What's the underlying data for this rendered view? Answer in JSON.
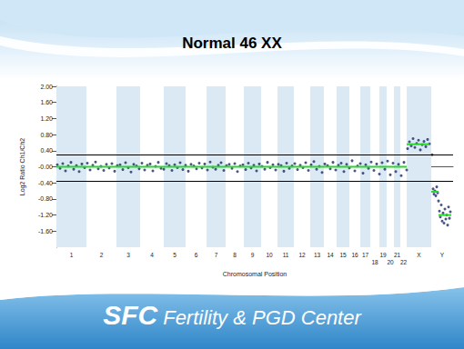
{
  "title": "Normal 46 XX",
  "footer": {
    "brand": "SFC",
    "text": "Fertility & PGD Center"
  },
  "chart_data": {
    "type": "scatter",
    "x_label": "Chromosomal Position",
    "y_label": "Log2 Ratio Ch1/Ch2",
    "xlim": [
      0,
      436
    ],
    "ylim": [
      -2,
      2
    ],
    "yticks": [
      {
        "value": 2,
        "label": "2.00"
      },
      {
        "value": 1.6,
        "label": "1.60"
      },
      {
        "value": 1.2,
        "label": "1.20"
      },
      {
        "value": 0.8,
        "label": "0.80"
      },
      {
        "value": 0.4,
        "label": "0.40"
      },
      {
        "value": 0,
        "label": "-0.00"
      },
      {
        "value": -0.4,
        "label": "-0.40"
      },
      {
        "value": -0.8,
        "label": "-0.80"
      },
      {
        "value": -1.2,
        "label": "-1.20"
      },
      {
        "value": -1.6,
        "label": "-1.60"
      }
    ],
    "grid": false,
    "color": "#1c2a66",
    "marker": "circle",
    "chromosomes": [
      {
        "name": "1",
        "start": 0,
        "end": 33
      },
      {
        "name": "2",
        "start": 33,
        "end": 66
      },
      {
        "name": "3",
        "start": 66,
        "end": 92
      },
      {
        "name": "4",
        "start": 92,
        "end": 118
      },
      {
        "name": "5",
        "start": 118,
        "end": 142
      },
      {
        "name": "6",
        "start": 142,
        "end": 165
      },
      {
        "name": "7",
        "start": 165,
        "end": 186
      },
      {
        "name": "8",
        "start": 186,
        "end": 206
      },
      {
        "name": "9",
        "start": 206,
        "end": 225
      },
      {
        "name": "10",
        "start": 225,
        "end": 243
      },
      {
        "name": "11",
        "start": 243,
        "end": 261
      },
      {
        "name": "12",
        "start": 261,
        "end": 279
      },
      {
        "name": "13",
        "start": 279,
        "end": 294
      },
      {
        "name": "14",
        "start": 294,
        "end": 308
      },
      {
        "name": "15",
        "start": 308,
        "end": 322
      },
      {
        "name": "16",
        "start": 322,
        "end": 334
      },
      {
        "name": "17",
        "start": 334,
        "end": 345
      },
      {
        "name": "18",
        "start": 345,
        "end": 355
      },
      {
        "name": "19",
        "start": 355,
        "end": 363
      },
      {
        "name": "20",
        "start": 363,
        "end": 371
      },
      {
        "name": "21",
        "start": 371,
        "end": 378
      },
      {
        "name": "22",
        "start": 378,
        "end": 385
      },
      {
        "name": "X",
        "start": 385,
        "end": 412
      },
      {
        "name": "Y",
        "start": 412,
        "end": 436
      }
    ],
    "thresholds": [
      0.3,
      -0.35
    ],
    "segments": {
      "color": "#2bd62b",
      "lines": [
        {
          "start": 0,
          "end": 385,
          "value": 0
        },
        {
          "start": 385,
          "end": 410,
          "value": 0.56
        },
        {
          "start": 412,
          "end": 420,
          "value": -0.62
        },
        {
          "start": 420,
          "end": 434,
          "value": -1.2
        }
      ]
    },
    "x": [
      1,
      4,
      7,
      10,
      13,
      16,
      19,
      22,
      25,
      28,
      31,
      34,
      37,
      40,
      43,
      46,
      49,
      52,
      55,
      58,
      61,
      64,
      67,
      70,
      73,
      76,
      79,
      82,
      85,
      88,
      91,
      94,
      97,
      100,
      103,
      106,
      109,
      112,
      115,
      118,
      121,
      124,
      127,
      130,
      133,
      136,
      139,
      142,
      145,
      148,
      151,
      154,
      157,
      160,
      163,
      166,
      169,
      172,
      175,
      178,
      181,
      184,
      187,
      190,
      193,
      196,
      199,
      202,
      205,
      208,
      211,
      214,
      217,
      220,
      223,
      226,
      229,
      232,
      235,
      238,
      241,
      244,
      247,
      250,
      253,
      256,
      259,
      262,
      265,
      268,
      271,
      274,
      277,
      280,
      283,
      286,
      289,
      292,
      295,
      298,
      301,
      304,
      307,
      310,
      313,
      316,
      319,
      322,
      325,
      328,
      331,
      334,
      337,
      340,
      343,
      346,
      349,
      352,
      355,
      358,
      361,
      364,
      367,
      370,
      373,
      376,
      379,
      382,
      385,
      386,
      388,
      390,
      392,
      394,
      396,
      398,
      400,
      402,
      404,
      406,
      408,
      410,
      413,
      414,
      415,
      416,
      417,
      418,
      419,
      420,
      421,
      422,
      423,
      424,
      425,
      426,
      427,
      428,
      429,
      430,
      431,
      432,
      433
    ],
    "values": [
      0.05,
      -0.04,
      0.08,
      -0.1,
      0.02,
      0.11,
      -0.06,
      0.03,
      -0.12,
      0.07,
      -0.02,
      0.09,
      -0.08,
      0.04,
      0.12,
      -0.05,
      0.01,
      -0.09,
      0.06,
      -0.03,
      0.08,
      -0.11,
      0.03,
      0.05,
      -0.07,
      0.1,
      -0.02,
      -0.13,
      0.06,
      0.02,
      -0.05,
      0.09,
      -0.08,
      0.04,
      0.07,
      -0.1,
      0.01,
      0.11,
      -0.04,
      -0.06,
      0.08,
      0.03,
      -0.09,
      0.05,
      -0.02,
      0.1,
      -0.07,
      0.04,
      -0.11,
      0.06,
      0.02,
      -0.05,
      0.09,
      -0.03,
      0.07,
      -0.08,
      0.12,
      -0.01,
      -0.06,
      0.04,
      0.1,
      -0.09,
      0.03,
      0.06,
      -0.04,
      0.08,
      -0.12,
      0.02,
      0.05,
      -0.07,
      0.09,
      -0.03,
      0.04,
      -0.1,
      0.07,
      0.01,
      -0.06,
      0.11,
      -0.02,
      0.05,
      -0.08,
      0.06,
      0.03,
      -0.11,
      0.09,
      -0.04,
      0.02,
      0.08,
      -0.07,
      0.04,
      -0.02,
      0.1,
      -0.09,
      0.05,
      0.13,
      -0.06,
      0.01,
      -0.14,
      0.07,
      0.03,
      -0.05,
      0.11,
      -0.08,
      0.04,
      0.09,
      -0.12,
      0.06,
      -0.03,
      0.15,
      -0.1,
      0.02,
      0.08,
      -0.16,
      0.05,
      -0.04,
      0.12,
      -0.09,
      0.07,
      -0.18,
      0.1,
      -0.06,
      0.14,
      -0.2,
      0.09,
      -0.12,
      0.06,
      -0.22,
      0.11,
      -0.08,
      0.45,
      0.62,
      0.52,
      0.7,
      0.48,
      0.58,
      0.66,
      0.42,
      0.55,
      0.63,
      0.5,
      0.68,
      0.57,
      0.3,
      -0.55,
      -0.68,
      -0.6,
      -0.72,
      -0.5,
      -0.65,
      -0.85,
      -1.1,
      -1.25,
      -0.95,
      -1.35,
      -1.15,
      -1.4,
      -1.05,
      -1.3,
      -1.2,
      -1.45,
      -1.0,
      -1.28,
      -1.12
    ]
  }
}
